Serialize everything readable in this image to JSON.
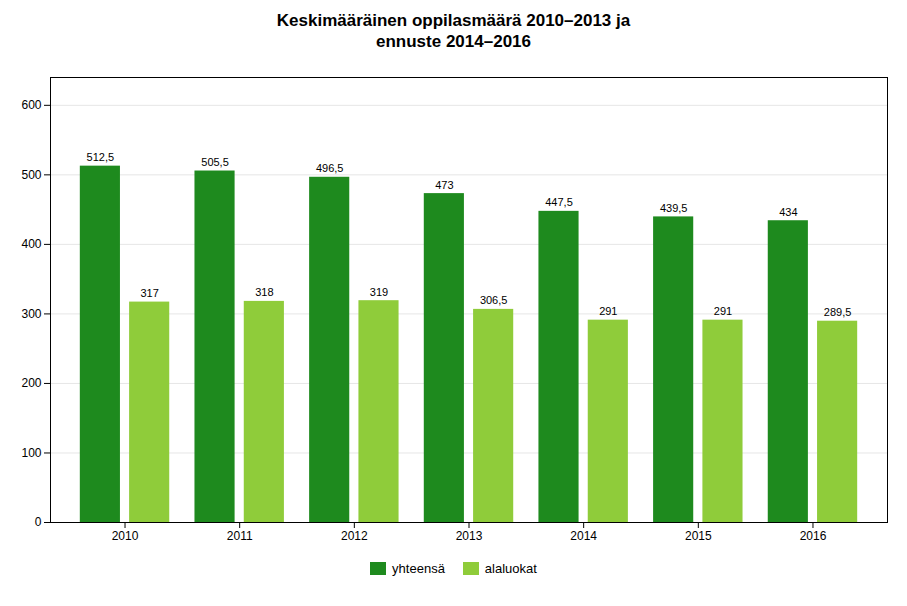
{
  "chart_data": {
    "type": "bar",
    "title": "Keskimääräinen oppilasmäärä 2010–2013 ja\nennuste 2014–2016",
    "categories": [
      "2010",
      "2011",
      "2012",
      "2013",
      "2014",
      "2015",
      "2016"
    ],
    "series": [
      {
        "name": "yhteensä",
        "color": "#1e8a1e",
        "values": [
          512.5,
          505.5,
          496.5,
          473,
          447.5,
          439.5,
          434
        ],
        "value_labels": [
          "512,5",
          "505,5",
          "496,5",
          "473",
          "447,5",
          "439,5",
          "434"
        ]
      },
      {
        "name": "alaluokat",
        "color": "#8fcc3a",
        "values": [
          317,
          318,
          319,
          306.5,
          291,
          291,
          289.5
        ],
        "value_labels": [
          "317",
          "318",
          "319",
          "306,5",
          "291",
          "291",
          "289,5"
        ]
      }
    ],
    "ylim": [
      0,
      640
    ],
    "yticks": [
      0,
      100,
      200,
      300,
      400,
      500,
      600
    ],
    "grid": true,
    "legend": "bottom",
    "data_labels": true
  }
}
